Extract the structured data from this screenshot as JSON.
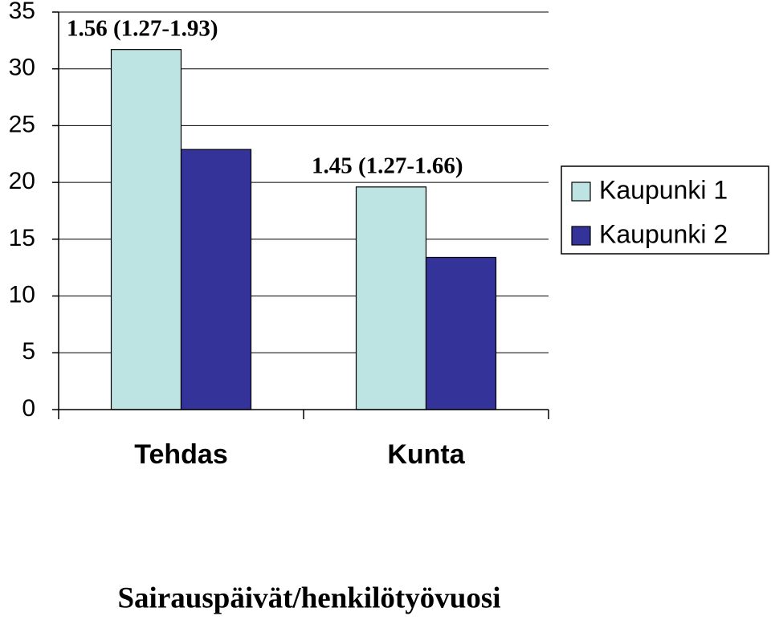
{
  "chart_data": {
    "type": "bar",
    "categories": [
      "Tehdas",
      "Kunta"
    ],
    "series": [
      {
        "name": "Kaupunki 1",
        "color": "#bde3e3",
        "values": [
          31.7,
          19.6
        ]
      },
      {
        "name": "Kaupunki 2",
        "color": "#333399",
        "values": [
          22.9,
          13.4
        ]
      }
    ],
    "annotations": [
      "1.56 (1.27-1.93)",
      "1.45 (1.27-1.66)"
    ],
    "x_label": "Sairauspäivät/henkilötyövuosi",
    "ylim": [
      0,
      35
    ],
    "yticks": [
      0,
      5,
      10,
      15,
      20,
      25,
      30,
      35
    ],
    "grid": true,
    "legend": "right"
  }
}
